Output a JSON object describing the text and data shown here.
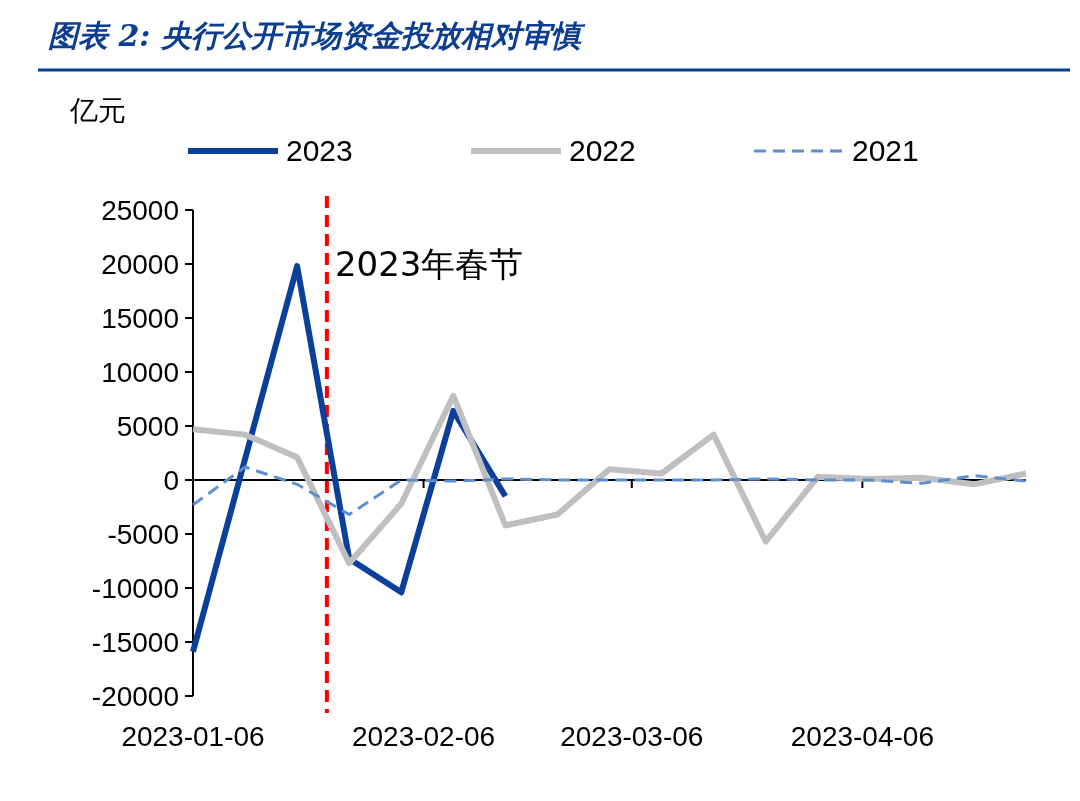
{
  "chart_data": {
    "type": "line",
    "title": "图表 2:  央行公开市场资金投放相对审慎",
    "ylabel": "亿元",
    "ylim": [
      -20000,
      25000
    ],
    "yticks": [
      -20000,
      -15000,
      -10000,
      -5000,
      0,
      5000,
      10000,
      15000,
      20000,
      25000
    ],
    "xlim": [
      "2023-01-06",
      "2023-04-28"
    ],
    "xticks": [
      "2023-01-06",
      "2023-02-06",
      "2023-03-06",
      "2023-04-06"
    ],
    "legend": "top",
    "marker": "none",
    "ref_lines": [
      {
        "axis": "x",
        "value": "2023-01-24",
        "label": "2023年春节",
        "color": "#ff0000",
        "line_style": "dashed"
      }
    ],
    "series": [
      {
        "name": "2023",
        "color": "#0a3f9c",
        "line_style": "solid",
        "x": [
          "2023-01-06",
          "2023-01-20",
          "2023-01-27",
          "2023-02-03",
          "2023-02-10",
          "2023-02-17"
        ],
        "values": [
          -15900,
          19800,
          -7300,
          -10400,
          6400,
          -1500
        ]
      },
      {
        "name": "2022",
        "color": "#bfbfbf",
        "line_style": "solid",
        "x": [
          "2023-01-06",
          "2023-01-13",
          "2023-01-20",
          "2023-01-27",
          "2023-02-03",
          "2023-02-10",
          "2023-02-17",
          "2023-02-24",
          "2023-03-03",
          "2023-03-10",
          "2023-03-17",
          "2023-03-24",
          "2023-03-31",
          "2023-04-07",
          "2023-04-14",
          "2023-04-21",
          "2023-04-28"
        ],
        "values": [
          4700,
          4200,
          2100,
          -7700,
          -2200,
          7800,
          -4200,
          -3200,
          1000,
          600,
          4200,
          -5700,
          300,
          100,
          200,
          -400,
          600
        ]
      },
      {
        "name": "2021",
        "color": "#5b8fd0",
        "line_style": "dashed",
        "x": [
          "2023-01-06",
          "2023-01-13",
          "2023-01-20",
          "2023-01-27",
          "2023-02-03",
          "2023-02-10",
          "2023-02-17",
          "2023-02-24",
          "2023-03-03",
          "2023-03-10",
          "2023-03-17",
          "2023-03-24",
          "2023-03-31",
          "2023-04-07",
          "2023-04-14",
          "2023-04-21",
          "2023-04-28"
        ],
        "values": [
          -2300,
          1200,
          -400,
          -3200,
          0,
          -100,
          100,
          0,
          0,
          0,
          0,
          100,
          0,
          0,
          -300,
          400,
          -100
        ]
      }
    ]
  }
}
